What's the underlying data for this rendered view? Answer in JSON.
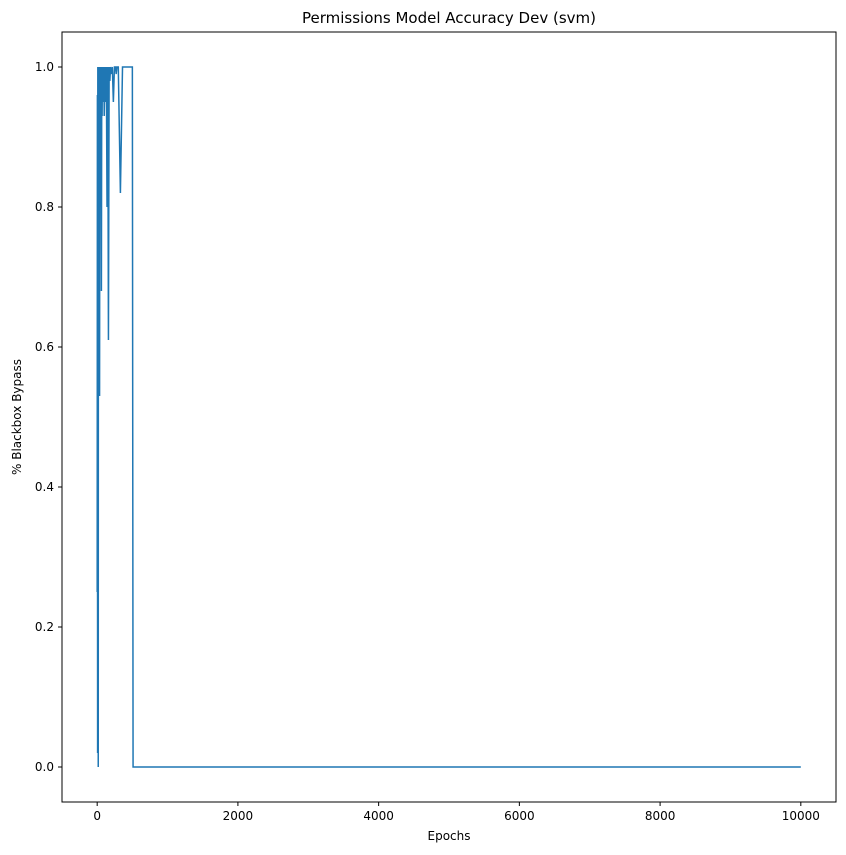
{
  "chart_data": {
    "type": "line",
    "title": "Permissions Model Accuracy Dev (svm)",
    "xlabel": "Epochs",
    "ylabel": "% Blackbox Bypass",
    "xlim": [
      -500,
      10500
    ],
    "ylim": [
      -0.05,
      1.05
    ],
    "xticks": [
      0,
      2000,
      4000,
      6000,
      8000,
      10000
    ],
    "xtick_labels": [
      "0",
      "2000",
      "4000",
      "6000",
      "8000",
      "10000"
    ],
    "yticks": [
      0.0,
      0.2,
      0.4,
      0.6,
      0.8,
      1.0
    ],
    "ytick_labels": [
      "0.0",
      "0.2",
      "0.4",
      "0.6",
      "0.8",
      "1.0"
    ],
    "grid": false,
    "legend": "none",
    "series": [
      {
        "color": "#1f77b4",
        "x": [
          0,
          3,
          6,
          9,
          12,
          15,
          18,
          20,
          23,
          26,
          30,
          34,
          38,
          42,
          46,
          50,
          55,
          60,
          65,
          70,
          75,
          80,
          85,
          90,
          95,
          100,
          110,
          120,
          130,
          140,
          150,
          160,
          170,
          180,
          190,
          200,
          215,
          230,
          245,
          260,
          270,
          280,
          300,
          330,
          360,
          370,
          380,
          400,
          430,
          460,
          490,
          500,
          510,
          520,
          600,
          1000,
          2000,
          4000,
          6000,
          8000,
          10000
        ],
        "y": [
          0.25,
          0.96,
          0.02,
          1.0,
          0.55,
          0.0,
          1.0,
          0.53,
          1.0,
          0.68,
          1.0,
          0.53,
          1.0,
          0.8,
          1.0,
          0.92,
          1.0,
          0.68,
          1.0,
          0.93,
          1.0,
          0.98,
          1.0,
          0.95,
          1.0,
          0.93,
          1.0,
          0.95,
          1.0,
          0.8,
          1.0,
          0.61,
          1.0,
          0.98,
          1.0,
          0.99,
          1.0,
          0.95,
          1.0,
          1.0,
          0.99,
          1.0,
          1.0,
          0.82,
          1.0,
          1.0,
          1.0,
          1.0,
          1.0,
          1.0,
          1.0,
          1.0,
          0.0,
          0.0,
          0.0,
          0.0,
          0.0,
          0.0,
          0.0,
          0.0,
          0.0
        ]
      }
    ]
  }
}
